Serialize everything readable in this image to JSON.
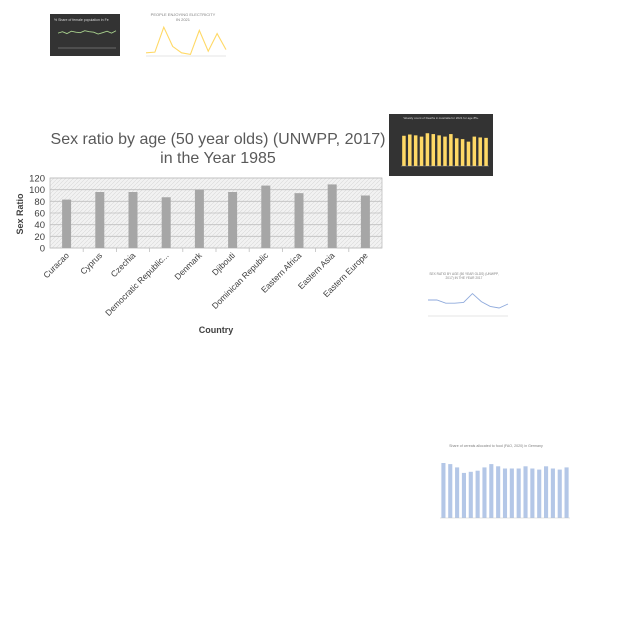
{
  "main": {
    "chart_data": {
      "type": "bar",
      "title_line1": "Sex ratio by age (50 year olds) (UNWPP, 2017)",
      "title_line2": "in the Year 1985",
      "xlabel": "Country",
      "ylabel": "Sex Ratio",
      "ylim": [
        0,
        120
      ],
      "yticks": [
        0,
        20,
        40,
        60,
        80,
        100,
        120
      ],
      "ytick_labels": [
        "0",
        "20",
        "40",
        "60",
        "80",
        "100",
        "120"
      ],
      "grid": true,
      "categories": [
        "Curacao",
        "Cyprus",
        "Czechia",
        "Democratic Republic...",
        "Denmark",
        "Djibouti",
        "Dominican Republic",
        "Eastern Africa",
        "Eastern Asia",
        "Eastern Europe"
      ],
      "values": [
        83,
        96,
        96,
        87,
        100,
        96,
        107,
        94,
        109,
        90
      ],
      "bar_color": "#a6a6a6"
    }
  },
  "thumbnails": [
    {
      "chart_data": {
        "type": "line",
        "title": "% Share of female population in Fe",
        "y": [
          62,
          68,
          60,
          70,
          66,
          64,
          72,
          68,
          66,
          58,
          64,
          70,
          62,
          72
        ],
        "ylim": [
          0,
          100
        ],
        "background": "#333333",
        "line_color": "#a9d18e"
      }
    },
    {
      "chart_data": {
        "type": "line",
        "title_line1": "PEOPLE ENJOYING ELECTRICITY",
        "title_line2": "IN 2021",
        "y": [
          10,
          12,
          90,
          30,
          10,
          5,
          80,
          15,
          70,
          20
        ],
        "ylim": [
          0,
          100
        ],
        "line_color": "#ffd966"
      }
    },
    {
      "chart_data": {
        "type": "bar",
        "title": "Weekly count of Deaths in Australia for 2021 for age 85+",
        "values": [
          72,
          75,
          73,
          70,
          78,
          76,
          73,
          70,
          76,
          66,
          64,
          58,
          70,
          68,
          67
        ],
        "ylim": [
          0,
          100
        ],
        "background": "#333333",
        "bar_color": "#ffd966"
      }
    },
    {
      "chart_data": {
        "type": "line",
        "title_line1": "SEX RATIO BY AGE (50 YEAR OLDS) (UNWPP,",
        "title_line2": "2017) IN THE YEAR 2017",
        "y": [
          100,
          100,
          96,
          96,
          97,
          108,
          98,
          92,
          90,
          95
        ],
        "ylim": [
          80,
          120
        ],
        "line_color": "#8faadc"
      }
    },
    {
      "chart_data": {
        "type": "bar",
        "title": "Share of cereals allocated to food (FAO, 2020) in Germany",
        "values": [
          50,
          49,
          46,
          41,
          42,
          43,
          46,
          49,
          47,
          45,
          45,
          45,
          47,
          45,
          44,
          47,
          45,
          44,
          46
        ],
        "ylim": [
          0,
          60
        ],
        "bar_color": "#b4c7e7"
      }
    }
  ]
}
